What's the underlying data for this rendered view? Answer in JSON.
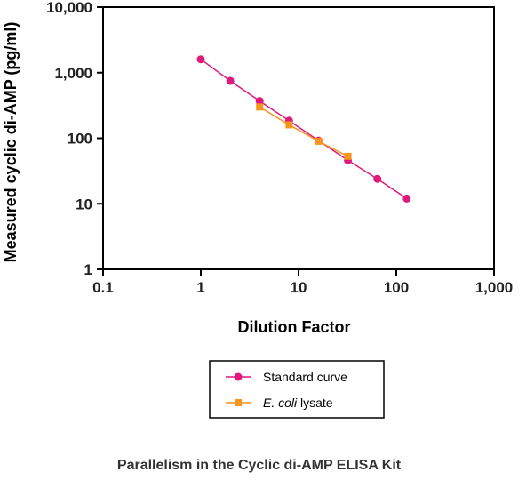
{
  "caption": "Parallelism in the Cyclic di-AMP ELISA Kit",
  "chart_data": {
    "type": "scatter",
    "title": "Parallelism in the Cyclic di-AMP ELISA Kit",
    "xlabel": "Dilution Factor",
    "ylabel": "Measured cyclic di-AMP (pg/ml)",
    "xscale": "log",
    "yscale": "log",
    "xlim": [
      0.1,
      1000
    ],
    "ylim": [
      1,
      10000
    ],
    "x_ticks": [
      0.1,
      1,
      10,
      100,
      1000
    ],
    "x_tick_labels": [
      "0.1",
      "1",
      "10",
      "100",
      "1,000"
    ],
    "y_ticks": [
      1,
      10,
      100,
      1000,
      10000
    ],
    "y_tick_labels": [
      "1",
      "10",
      "100",
      "1,000",
      "10,000"
    ],
    "grid": false,
    "legend_position": "bottom-center",
    "series": [
      {
        "name": "Standard curve",
        "color": "#e0197d",
        "marker": "circle",
        "x": [
          1,
          2,
          4,
          8,
          16,
          32,
          64,
          128
        ],
        "y": [
          1600,
          750,
          370,
          185,
          92,
          46,
          24,
          12
        ]
      },
      {
        "name": "E. coli lysate",
        "name_italic_part": "E. coli",
        "name_plain_part": " lysate",
        "color": "#f7941d",
        "marker": "square",
        "x": [
          4,
          8,
          16,
          32
        ],
        "y": [
          300,
          160,
          90,
          53
        ]
      }
    ]
  }
}
